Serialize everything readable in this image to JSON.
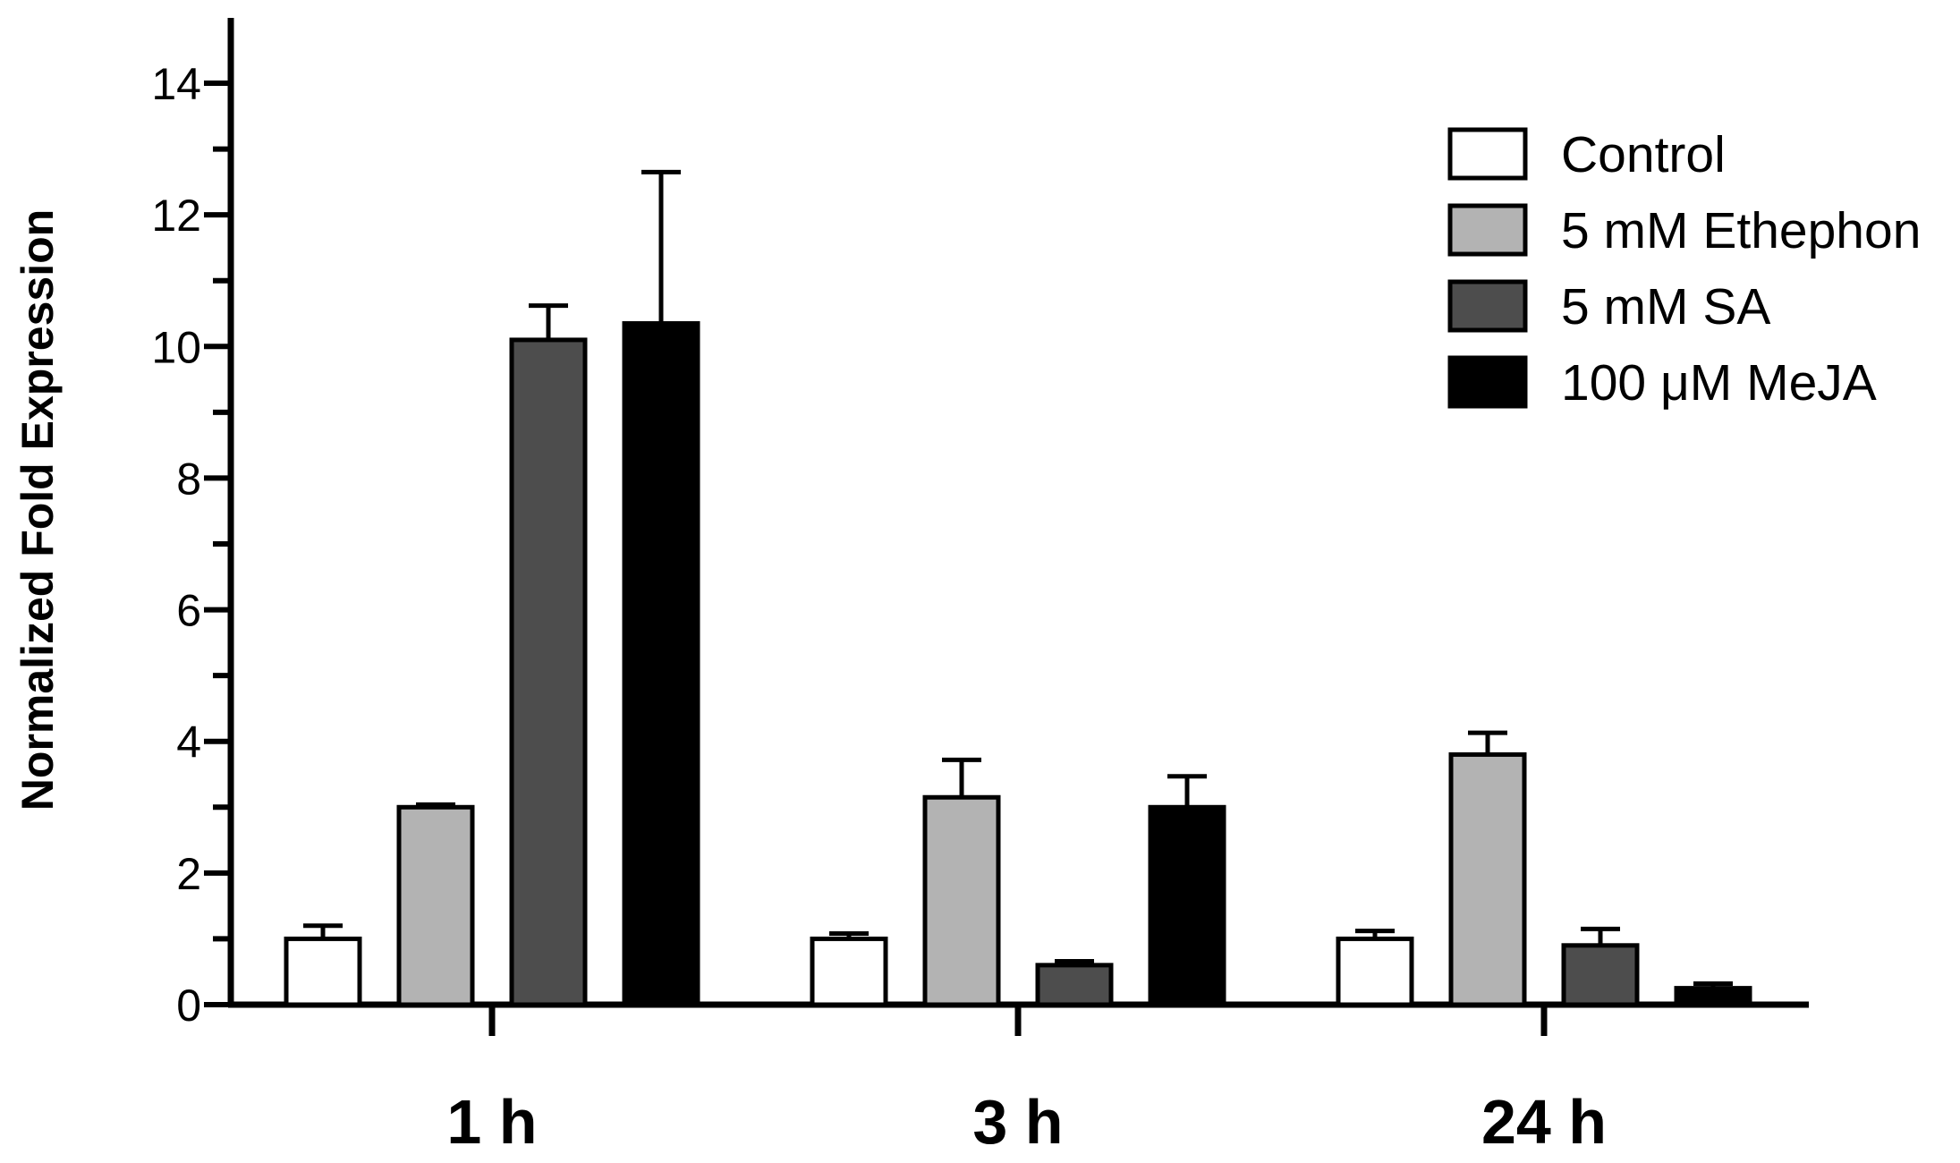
{
  "chart_data": {
    "type": "bar",
    "title": "",
    "xlabel": "",
    "ylabel": "Normalized Fold Expression",
    "ylim": [
      0,
      15
    ],
    "yticks": [
      0,
      2,
      4,
      6,
      8,
      10,
      12,
      14
    ],
    "minor_tick_step": 1,
    "grid": false,
    "legend_position": "top-right",
    "categories": [
      "1 h",
      "3 h",
      "24 h"
    ],
    "series": [
      {
        "name": "Control",
        "color": "#ffffff",
        "values": [
          1.0,
          1.0,
          1.0
        ],
        "errors": [
          0.2,
          0.08,
          0.12
        ]
      },
      {
        "name": "5 mM Ethephon",
        "color": "#b3b3b3",
        "values": [
          3.0,
          3.15,
          3.8
        ],
        "errors": [
          0.04,
          0.57,
          0.33
        ]
      },
      {
        "name": "5 mM SA",
        "color": "#4d4d4d",
        "values": [
          10.1,
          0.6,
          0.9
        ],
        "errors": [
          0.52,
          0.06,
          0.25
        ]
      },
      {
        "name": "100 μM MeJA",
        "color": "#000000",
        "values": [
          10.35,
          3.0,
          0.25
        ],
        "errors": [
          2.3,
          0.47,
          0.07
        ]
      }
    ]
  }
}
